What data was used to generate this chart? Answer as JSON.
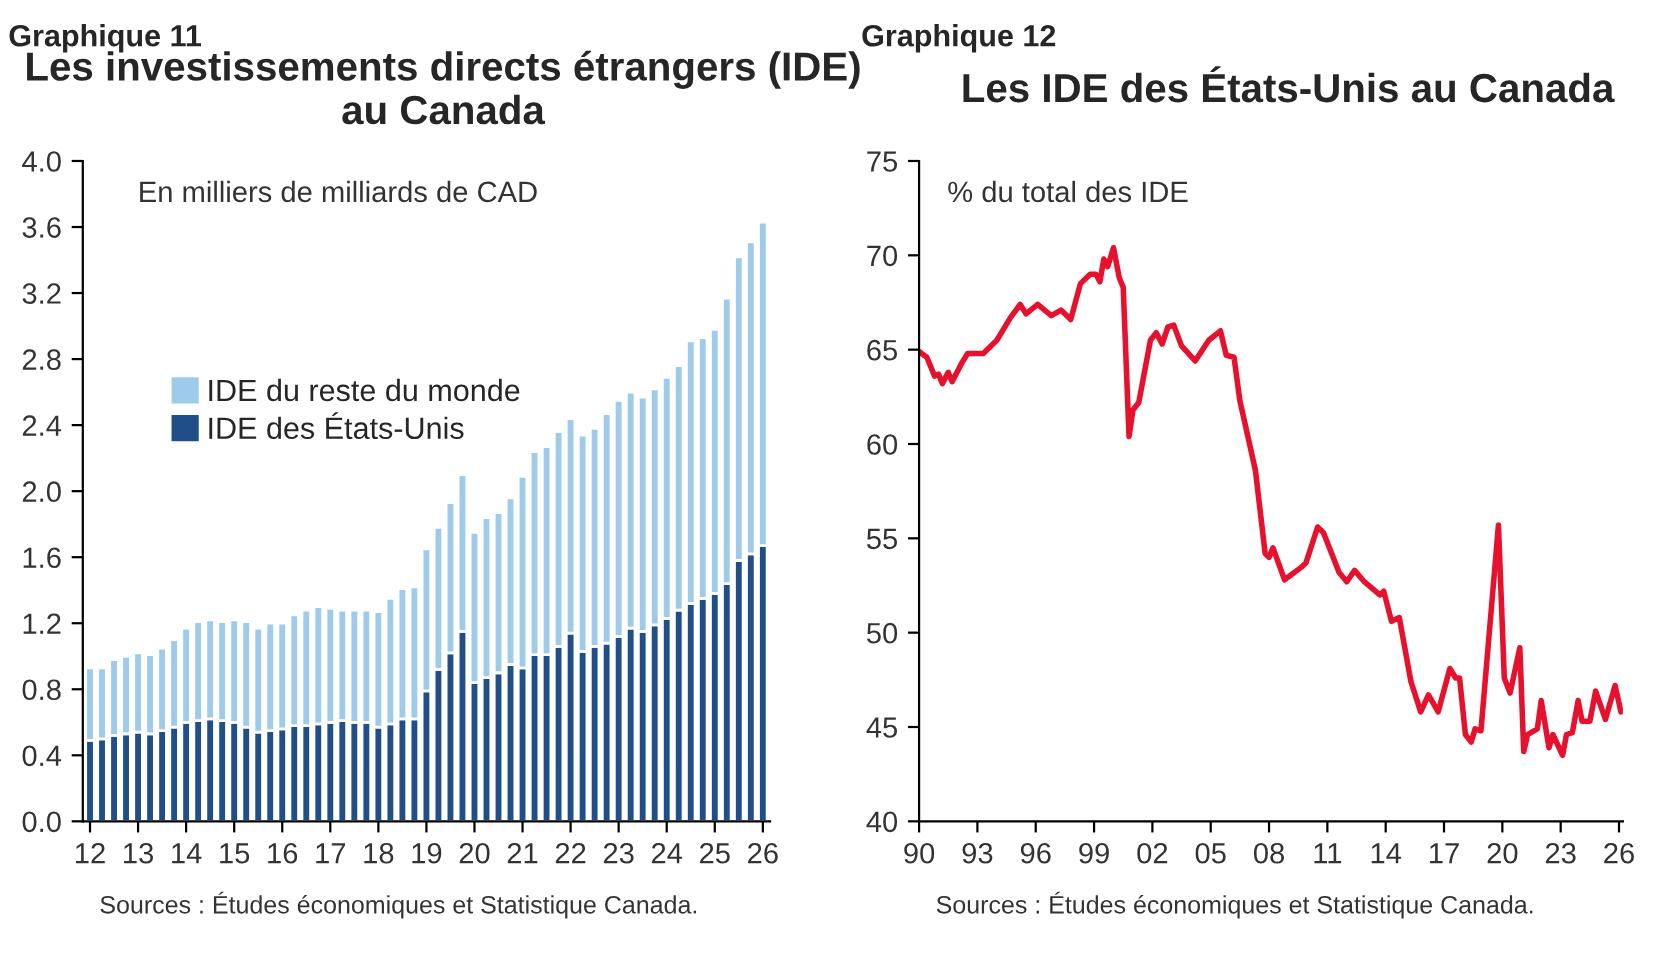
{
  "chart_data": [
    {
      "type": "bar",
      "stacked": true,
      "title": "Les investissements directs étrangers (IDE) au Canada",
      "subtitle": "En milliers de milliards de CAD",
      "annotations": [
        "Graphique 11",
        "Sources : Études économiques et Statistique Canada."
      ],
      "categories": [
        "12",
        null,
        null,
        null,
        "13",
        null,
        null,
        null,
        "14",
        null,
        null,
        null,
        "15",
        null,
        null,
        null,
        "16",
        null,
        null,
        null,
        "17",
        null,
        null,
        null,
        "18",
        null,
        null,
        null,
        "19",
        null,
        null,
        null,
        "20",
        null,
        null,
        null,
        "21",
        null,
        null,
        null,
        "22",
        null,
        null,
        null,
        "23",
        null,
        null,
        null,
        "24",
        null,
        null,
        null,
        "25",
        null,
        null,
        null,
        "26"
      ],
      "series": [
        {
          "name": "IDE des États-Unis",
          "color": "#1f4e89",
          "values": [
            0.49,
            0.5,
            0.52,
            0.53,
            0.54,
            0.53,
            0.55,
            0.57,
            0.6,
            0.61,
            0.62,
            0.61,
            0.6,
            0.57,
            0.54,
            0.55,
            0.56,
            0.58,
            0.58,
            0.59,
            0.6,
            0.61,
            0.6,
            0.6,
            0.57,
            0.59,
            0.62,
            0.62,
            0.79,
            0.92,
            1.02,
            1.15,
            0.84,
            0.87,
            0.9,
            0.95,
            0.93,
            1.01,
            1.01,
            1.06,
            1.14,
            1.03,
            1.06,
            1.08,
            1.12,
            1.17,
            1.15,
            1.19,
            1.23,
            1.28,
            1.32,
            1.35,
            1.38,
            1.44,
            1.58,
            1.62,
            1.67
          ]
        },
        {
          "name": "IDE du reste du monde",
          "color": "#9dcbe9",
          "values": [
            0.44,
            0.43,
            0.46,
            0.47,
            0.48,
            0.48,
            0.5,
            0.53,
            0.57,
            0.6,
            0.6,
            0.6,
            0.62,
            0.64,
            0.63,
            0.65,
            0.64,
            0.67,
            0.7,
            0.71,
            0.69,
            0.67,
            0.68,
            0.68,
            0.7,
            0.76,
            0.79,
            0.8,
            0.86,
            0.86,
            0.91,
            0.95,
            0.91,
            0.97,
            0.97,
            1.01,
            1.16,
            1.23,
            1.26,
            1.3,
            1.3,
            1.31,
            1.32,
            1.39,
            1.43,
            1.43,
            1.42,
            1.43,
            1.46,
            1.48,
            1.59,
            1.58,
            1.6,
            1.73,
            1.84,
            1.89,
            1.96
          ]
        }
      ],
      "ylim": [
        0,
        4
      ],
      "yticks": [
        {
          "value": 0,
          "label": "0.0"
        },
        0.4,
        0.8,
        1.2,
        1.6,
        {
          "value": 2,
          "label": "2.0"
        },
        2.4,
        2.8,
        3.2,
        3.6,
        {
          "value": 4,
          "label": "4.0"
        }
      ],
      "legend": "left",
      "grid": false
    },
    {
      "type": "line",
      "title": "Les IDE des États-Unis au Canada",
      "subtitle": "% du total des IDE",
      "annotations": [
        "Graphique 12",
        "Sources : Études économiques et Statistique Canada."
      ],
      "series": [
        {
          "color": "#e8112d",
          "x": [
            1990.0,
            1990.4,
            1990.8,
            1991.0,
            1991.2,
            1991.5,
            1991.7,
            1992.2,
            1992.5,
            1993.3,
            1994.0,
            1994.7,
            1995.2,
            1995.5,
            1996.1,
            1996.8,
            1997.3,
            1997.8,
            1998.3,
            1998.8,
            1999.1,
            1999.3,
            1999.5,
            1999.7,
            2000.0,
            2000.3,
            2000.5,
            2000.8,
            2001.0,
            2001.3,
            2001.9,
            2002.2,
            2002.5,
            2002.8,
            2003.1,
            2003.5,
            2004.2,
            2004.9,
            2005.5,
            2005.8,
            2006.2,
            2006.5,
            2007.3,
            2007.8,
            2008.0,
            2008.2,
            2008.8,
            2009.7,
            2009.9,
            2010.5,
            2010.8,
            2011.6,
            2012.0,
            2012.4,
            2012.9,
            2013.7,
            2013.9,
            2014.3,
            2014.7,
            2015.3,
            2015.8,
            2016.2,
            2016.7,
            2017.3,
            2017.6,
            2017.8,
            2018.1,
            2018.4,
            2018.6,
            2018.9,
            2019.8,
            2020.1,
            2020.4,
            2020.9,
            2021.1,
            2021.3,
            2021.8,
            2022.0,
            2022.4,
            2022.6,
            2023.1,
            2023.3,
            2023.6,
            2023.9,
            2024.1,
            2024.5,
            2024.8,
            2025.3,
            2025.8,
            2026.1
          ],
          "values": [
            64.9,
            64.6,
            63.6,
            63.7,
            63.2,
            63.8,
            63.3,
            64.3,
            64.8,
            64.8,
            65.5,
            66.7,
            67.4,
            66.9,
            67.4,
            66.8,
            67.1,
            66.6,
            68.5,
            69.0,
            69.0,
            68.6,
            69.8,
            69.4,
            70.4,
            68.8,
            68.3,
            60.4,
            61.8,
            62.2,
            65.5,
            65.9,
            65.3,
            66.2,
            66.3,
            65.2,
            64.4,
            65.5,
            66.0,
            64.7,
            64.6,
            62.3,
            58.6,
            54.2,
            54.0,
            54.5,
            52.8,
            53.5,
            53.7,
            55.6,
            55.3,
            53.2,
            52.7,
            53.3,
            52.7,
            52.0,
            52.2,
            50.6,
            50.8,
            47.4,
            45.8,
            46.7,
            45.8,
            48.1,
            47.6,
            47.6,
            44.6,
            44.2,
            44.9,
            44.8,
            55.7,
            47.6,
            46.8,
            49.2,
            43.7,
            44.6,
            44.9,
            46.4,
            43.9,
            44.6,
            43.5,
            44.6,
            44.7,
            46.4,
            45.3,
            45.3,
            46.9,
            45.4,
            47.2,
            45.8
          ]
        }
      ],
      "xlim": [
        1990,
        2026.2
      ],
      "xticks": [
        {
          "value": 1990,
          "label": "90"
        },
        {
          "value": 1993,
          "label": "93"
        },
        {
          "value": 1996,
          "label": "96"
        },
        {
          "value": 1999,
          "label": "99"
        },
        {
          "value": 2002,
          "label": "02"
        },
        {
          "value": 2005,
          "label": "05"
        },
        {
          "value": 2008,
          "label": "08"
        },
        {
          "value": 2011,
          "label": "11"
        },
        {
          "value": 2014,
          "label": "14"
        },
        {
          "value": 2017,
          "label": "17"
        },
        {
          "value": 2020,
          "label": "20"
        },
        {
          "value": 2023,
          "label": "23"
        },
        {
          "value": 2026,
          "label": "26"
        }
      ],
      "ylim": [
        40,
        75
      ],
      "yticks": [
        40,
        45,
        50,
        55,
        60,
        65,
        70,
        75
      ],
      "grid": false,
      "legend": false
    }
  ]
}
